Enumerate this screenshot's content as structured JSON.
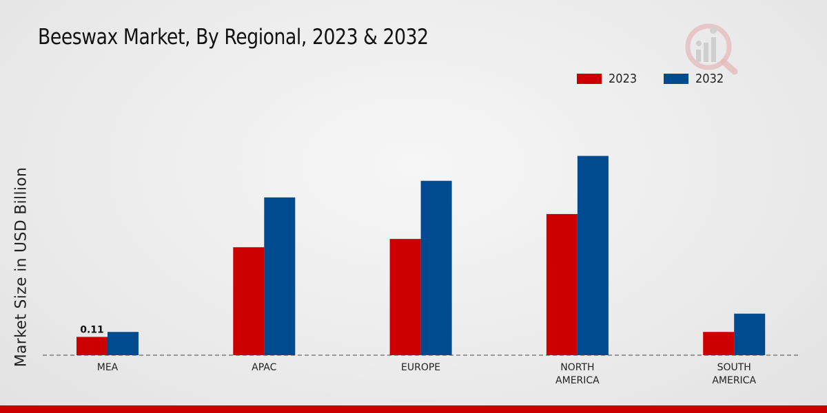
{
  "chart_data": {
    "type": "bar",
    "title": "Beeswax Market, By Regional, 2023 & 2032",
    "ylabel": "Market Size in USD Billion",
    "xlabel": "",
    "categories": [
      "MEA",
      "APAC",
      "EUROPE",
      "NORTH\nAMERICA",
      "SOUTH\nAMERICA"
    ],
    "series": [
      {
        "name": "2023",
        "color": "#cc0000",
        "values": [
          0.11,
          0.65,
          0.7,
          0.85,
          0.14
        ]
      },
      {
        "name": "2032",
        "color": "#004a8f",
        "values": [
          0.14,
          0.95,
          1.05,
          1.2,
          0.25
        ]
      }
    ],
    "data_labels": [
      {
        "series": 0,
        "index": 0,
        "text": "0.11"
      }
    ],
    "ylim": [
      0,
      1.6
    ],
    "grid": false,
    "legend_position": "top-right"
  },
  "logo": {
    "name": "brand-logo-icon",
    "color": "#e2b7b7"
  },
  "bottom_bar_color": "#cc0000"
}
